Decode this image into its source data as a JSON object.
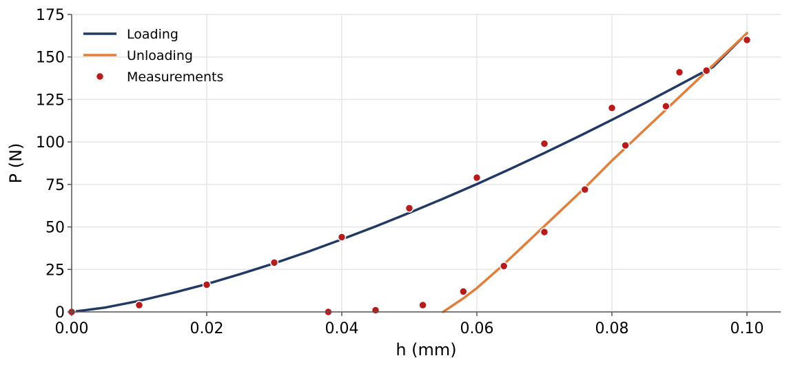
{
  "chart_data": {
    "type": "line",
    "title": "",
    "xlabel": "h (mm)",
    "ylabel": "P (N)",
    "xlim": [
      0.0,
      0.105
    ],
    "ylim": [
      0,
      175
    ],
    "xticks": [
      0.0,
      0.02,
      0.04,
      0.06,
      0.08,
      0.1
    ],
    "xtick_labels": [
      "0.00",
      "0.02",
      "0.04",
      "0.06",
      "0.08",
      "0.10"
    ],
    "yticks": [
      0,
      25,
      50,
      75,
      100,
      125,
      150,
      175
    ],
    "ytick_labels": [
      "0",
      "25",
      "50",
      "75",
      "100",
      "125",
      "150",
      "175"
    ],
    "grid": true,
    "legend_position": "top-left",
    "series": [
      {
        "name": "Loading",
        "kind": "line",
        "color": "#223a63",
        "x": [
          0.0,
          0.005,
          0.01,
          0.015,
          0.02,
          0.025,
          0.03,
          0.035,
          0.04,
          0.045,
          0.05,
          0.055,
          0.06,
          0.065,
          0.07,
          0.075,
          0.08,
          0.085,
          0.09,
          0.095,
          0.1
        ],
        "y": [
          0.0,
          2.6,
          6.5,
          11.2,
          16.4,
          22.3,
          28.6,
          35.4,
          42.7,
          50.3,
          58.3,
          66.6,
          75.2,
          84.2,
          93.5,
          103.1,
          113.0,
          123.1,
          133.6,
          144.2,
          164.0
        ]
      },
      {
        "name": "Unloading",
        "kind": "line",
        "color": "#e07e3c",
        "x": [
          0.055,
          0.058,
          0.06,
          0.064,
          0.068,
          0.072,
          0.076,
          0.08,
          0.084,
          0.088,
          0.092,
          0.096,
          0.1
        ],
        "y": [
          0.0,
          8.0,
          14.0,
          28.0,
          43.0,
          58.0,
          73.0,
          89.0,
          104.0,
          119.0,
          134.0,
          149.0,
          164.0
        ]
      },
      {
        "name": "Measurements",
        "kind": "scatter",
        "color": "#b71c1c",
        "x": [
          0.0,
          0.01,
          0.02,
          0.03,
          0.04,
          0.05,
          0.06,
          0.07,
          0.08,
          0.09,
          0.1,
          0.038,
          0.045,
          0.052,
          0.058,
          0.064,
          0.07,
          0.076,
          0.082,
          0.088,
          0.094
        ],
        "y": [
          0.0,
          4.0,
          16.0,
          29.0,
          44.0,
          61.0,
          79.0,
          99.0,
          120.0,
          141.0,
          160.0,
          0.0,
          1.0,
          4.0,
          12.0,
          27.0,
          47.0,
          72.0,
          98.0,
          121.0,
          142.0
        ]
      }
    ]
  }
}
